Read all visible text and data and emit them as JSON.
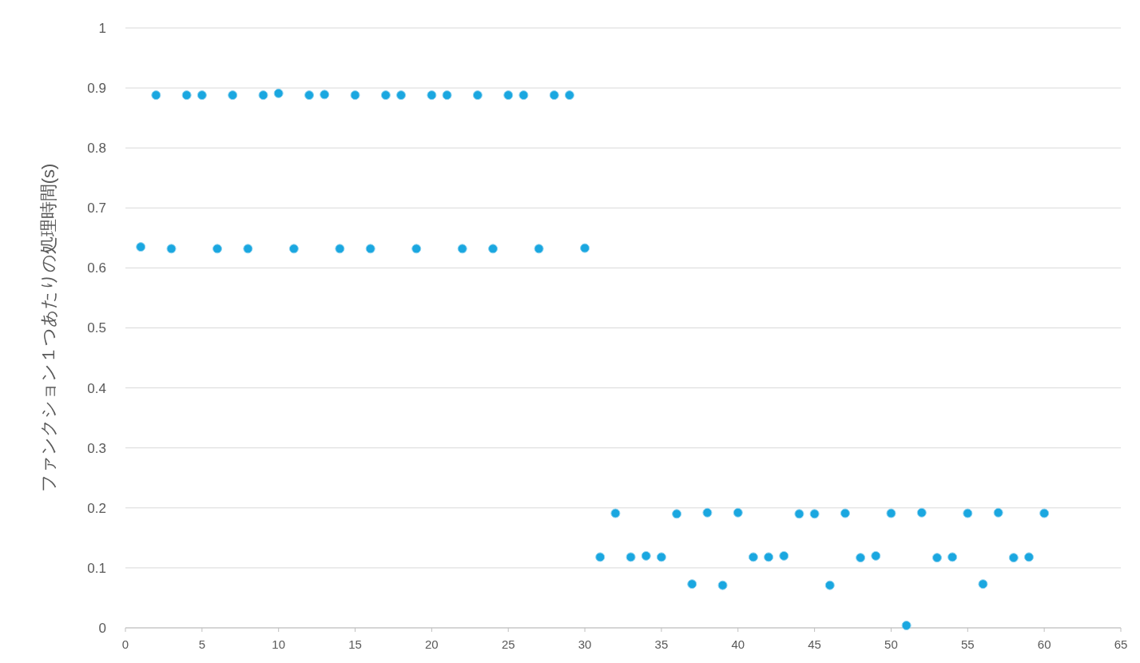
{
  "chart_data": {
    "type": "scatter",
    "ylabel": "ファンクション１つあたりの処理時間(s)",
    "x": [
      1,
      2,
      3,
      4,
      5,
      6,
      7,
      8,
      9,
      10,
      11,
      12,
      13,
      14,
      15,
      16,
      17,
      18,
      19,
      20,
      21,
      22,
      23,
      24,
      25,
      26,
      27,
      28,
      29,
      30,
      31,
      32,
      33,
      34,
      35,
      36,
      37,
      38,
      39,
      40,
      41,
      42,
      43,
      44,
      45,
      46,
      47,
      48,
      49,
      50,
      51,
      52,
      53,
      54,
      55,
      56,
      57,
      58,
      59,
      60
    ],
    "series": [
      {
        "color": "#1aa7e0",
        "values": [
          0.635,
          0.888,
          0.632,
          0.888,
          0.888,
          0.632,
          0.888,
          0.632,
          0.888,
          0.891,
          0.632,
          0.888,
          0.889,
          0.632,
          0.888,
          0.632,
          0.888,
          0.888,
          0.632,
          0.888,
          0.888,
          0.632,
          0.888,
          0.632,
          0.888,
          0.888,
          0.632,
          0.888,
          0.888,
          0.633,
          0.118,
          0.191,
          0.118,
          0.12,
          0.118,
          0.19,
          0.073,
          0.192,
          0.071,
          0.192,
          0.118,
          0.118,
          0.12,
          0.19,
          0.19,
          0.071,
          0.191,
          0.117,
          0.12,
          0.191,
          0.004,
          0.192,
          0.117,
          0.118,
          0.191,
          0.073,
          0.192,
          0.117,
          0.118,
          0.191
        ]
      }
    ],
    "xlim": [
      0,
      65
    ],
    "xticks": [
      0,
      5,
      10,
      15,
      20,
      25,
      30,
      35,
      40,
      45,
      50,
      55,
      60,
      65
    ],
    "ylim": [
      0,
      1
    ],
    "yticks": [
      0,
      0.1,
      0.2,
      0.3,
      0.4,
      0.5,
      0.6,
      0.7,
      0.8,
      0.9,
      1
    ],
    "grid": "y",
    "marker": "circle"
  }
}
